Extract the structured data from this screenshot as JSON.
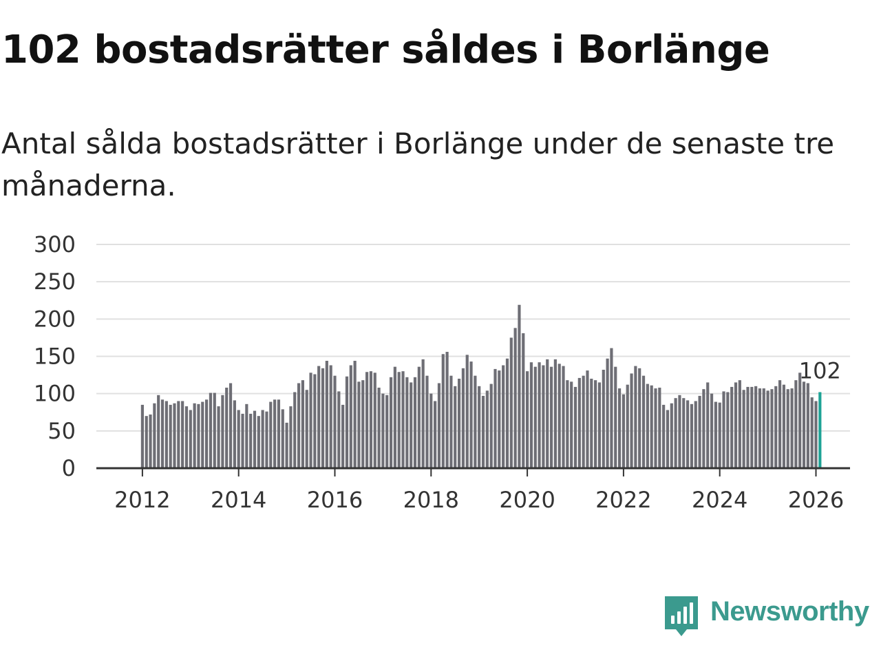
{
  "title": "102 bostadsrätter såldes i Borlänge",
  "subtitle": "Antal sålda bostadsrätter i Borlänge under de senaste tre månaderna.",
  "brand": {
    "name": "Newsworthy",
    "color": "#3b9a8e"
  },
  "colors": {
    "bar": "#6e6e75",
    "highlight": "#1fa396",
    "grid": "#e0e0e0",
    "axis": "#333333"
  },
  "chart_data": {
    "type": "bar",
    "title": "",
    "xlabel": "",
    "ylabel": "",
    "ylim": [
      0,
      300
    ],
    "yticks": [
      0,
      50,
      100,
      150,
      200,
      250,
      300
    ],
    "x_start": 2012.0,
    "x_step": 0.0833333,
    "xlim": [
      2011.0,
      2026.95
    ],
    "xticks": [
      2012,
      2014,
      2016,
      2018,
      2020,
      2022,
      2024,
      2026
    ],
    "highlight_last": true,
    "last_label": "102",
    "values": [
      85,
      70,
      72,
      87,
      98,
      92,
      90,
      85,
      87,
      90,
      90,
      83,
      78,
      87,
      86,
      89,
      92,
      101,
      101,
      83,
      98,
      108,
      114,
      91,
      78,
      73,
      86,
      73,
      77,
      70,
      78,
      76,
      89,
      92,
      92,
      79,
      61,
      83,
      102,
      114,
      118,
      105,
      128,
      126,
      137,
      134,
      144,
      138,
      124,
      103,
      85,
      123,
      138,
      144,
      116,
      118,
      129,
      130,
      128,
      108,
      100,
      98,
      122,
      136,
      129,
      130,
      122,
      115,
      122,
      136,
      146,
      124,
      100,
      90,
      114,
      153,
      156,
      124,
      110,
      120,
      134,
      152,
      143,
      124,
      110,
      97,
      104,
      113,
      133,
      131,
      138,
      147,
      175,
      188,
      219,
      181,
      130,
      142,
      136,
      142,
      138,
      146,
      136,
      146,
      140,
      137,
      118,
      116,
      109,
      121,
      124,
      131,
      120,
      118,
      115,
      132,
      147,
      161,
      136,
      107,
      99,
      112,
      127,
      137,
      134,
      124,
      113,
      111,
      107,
      108,
      85,
      78,
      87,
      94,
      98,
      94,
      91,
      86,
      90,
      97,
      106,
      115,
      100,
      89,
      88,
      103,
      102,
      109,
      115,
      118,
      105,
      109,
      109,
      110,
      107,
      107,
      104,
      106,
      110,
      118,
      112,
      106,
      107,
      118,
      128,
      116,
      114,
      95,
      90,
      102
    ]
  }
}
